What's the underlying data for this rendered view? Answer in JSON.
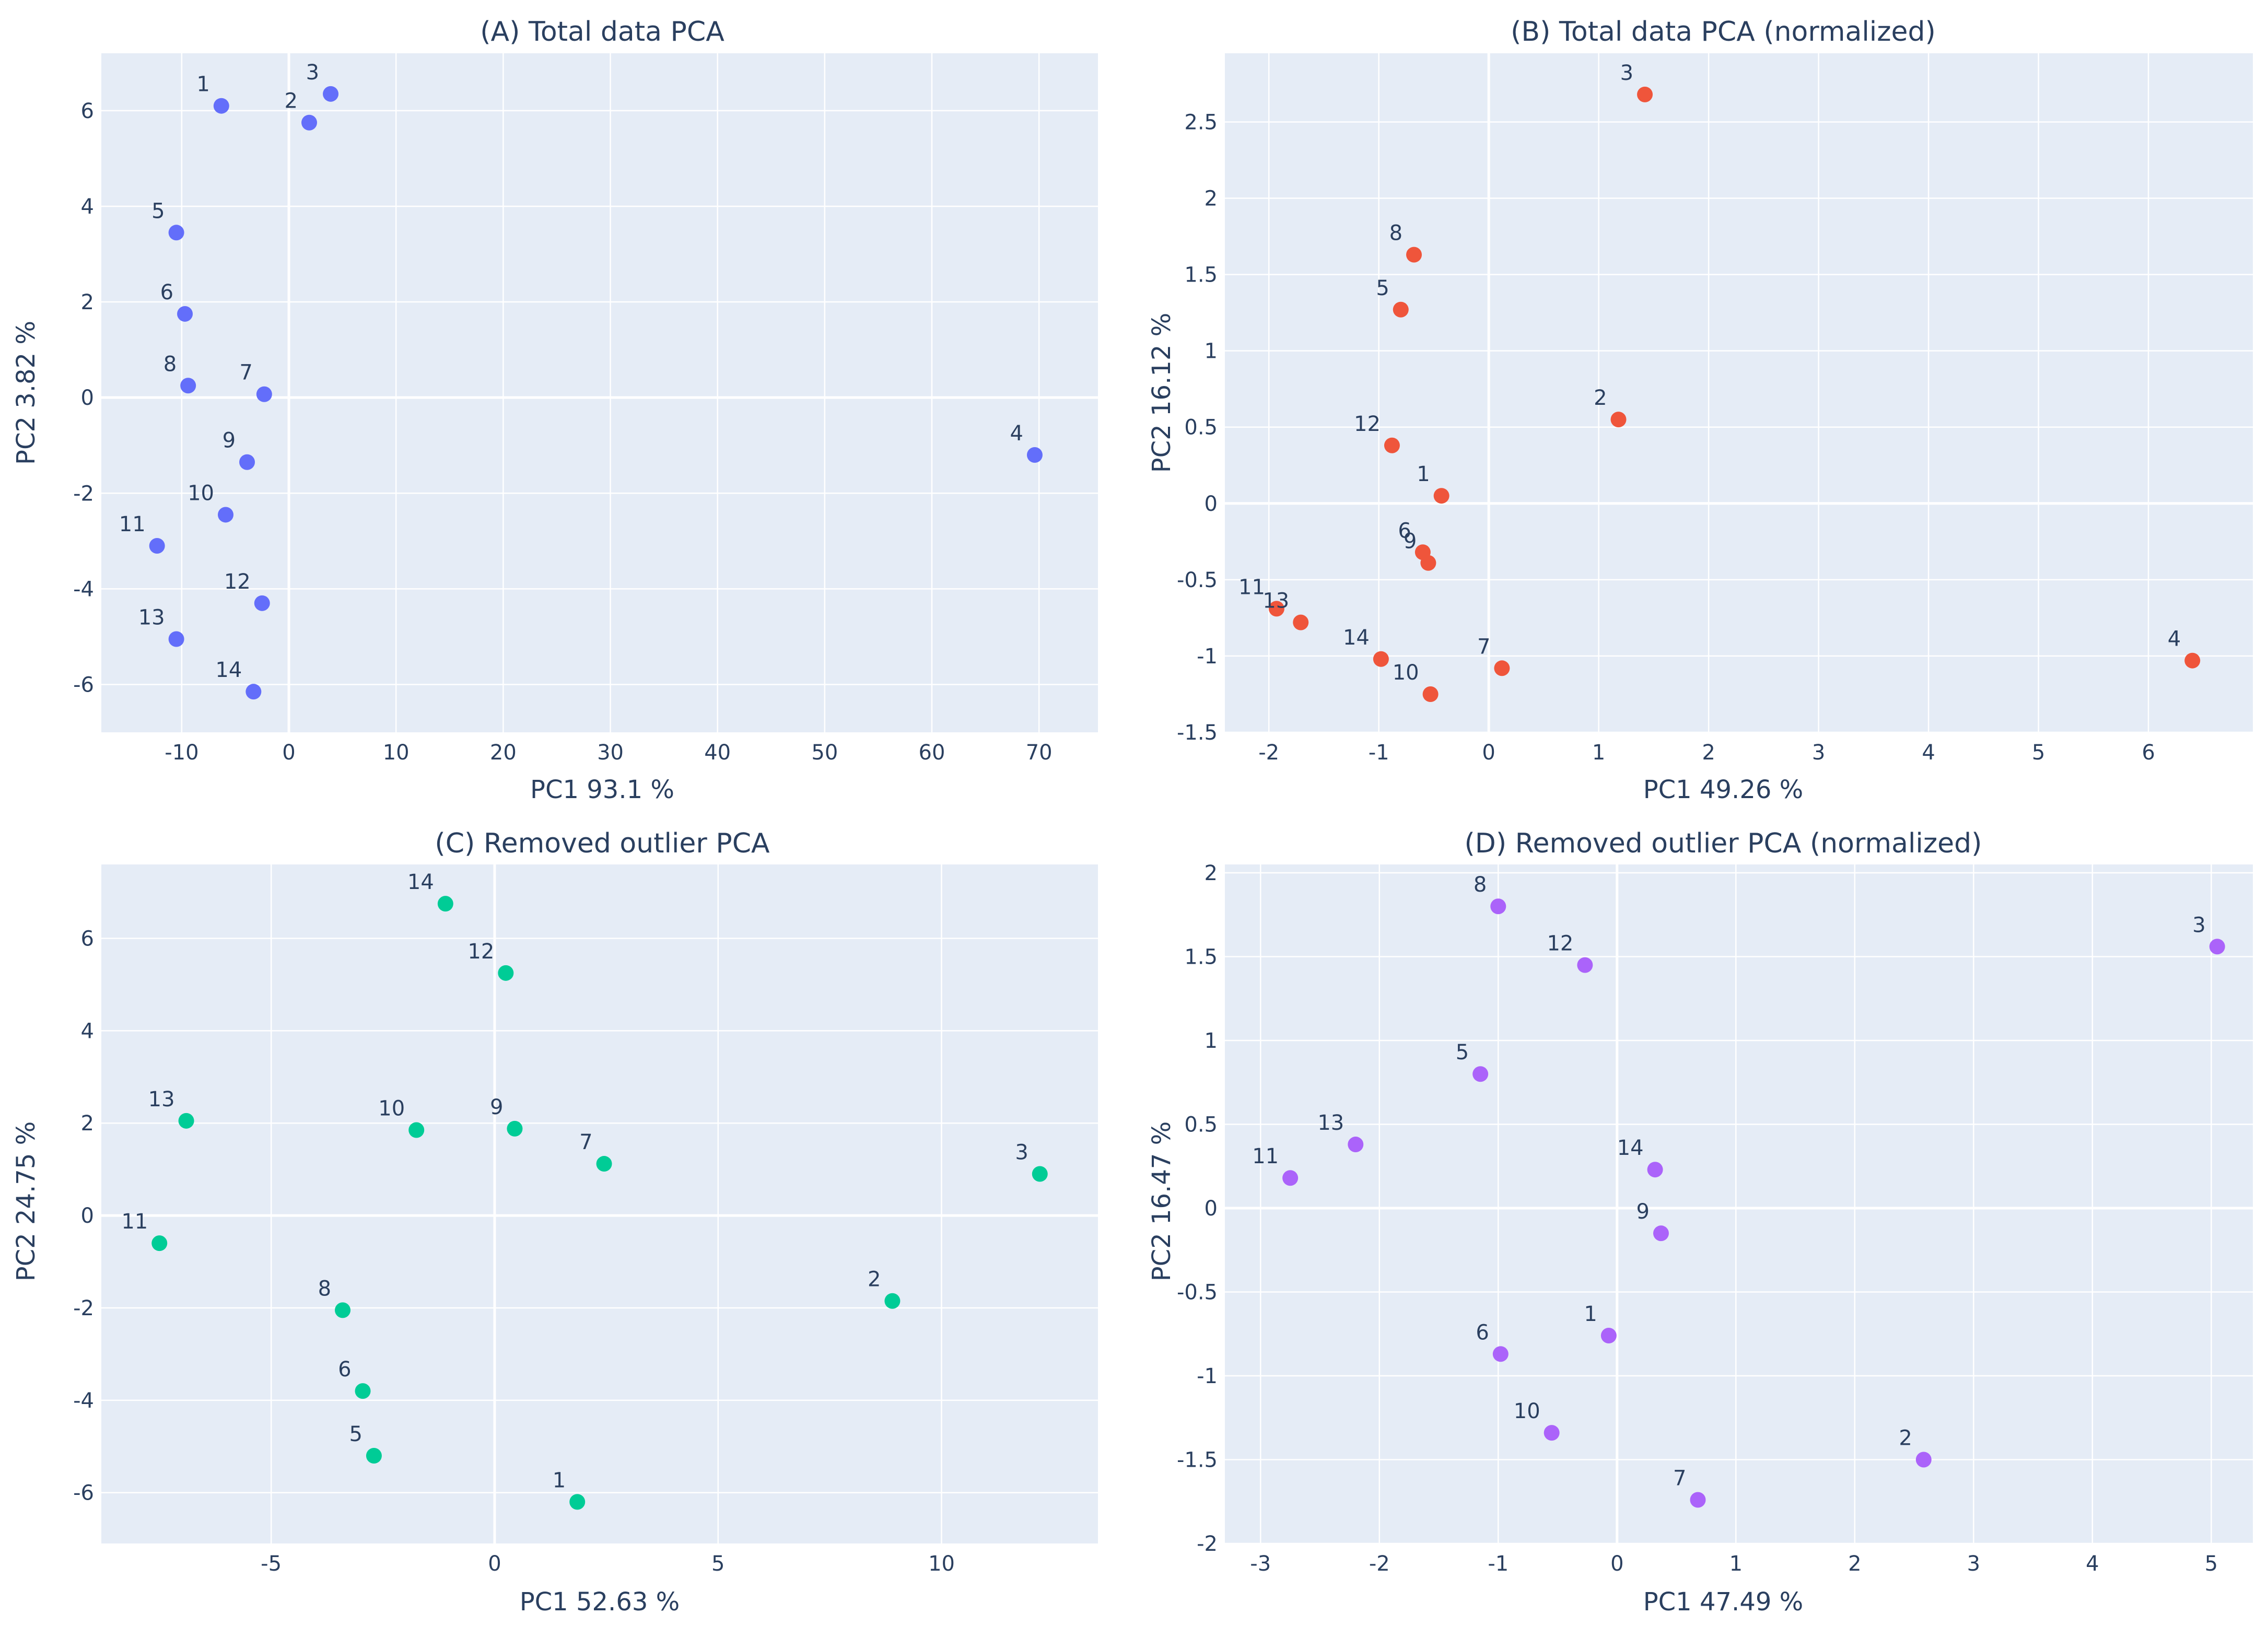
{
  "chart_data": [
    {
      "type": "scatter",
      "title": "(A) Total data PCA",
      "xlabel": "PC1 93.1 %",
      "ylabel": "PC2 3.82 %",
      "xlim": [
        -17.5,
        75.5
      ],
      "ylim": [
        -7.0,
        7.2
      ],
      "xticks": [
        -10,
        0,
        10,
        20,
        30,
        40,
        50,
        60,
        70
      ],
      "yticks": [
        -6,
        -4,
        -2,
        0,
        2,
        4,
        6
      ],
      "color": "#636efa",
      "points": [
        {
          "label": "1",
          "x": -6.3,
          "y": 6.1
        },
        {
          "label": "2",
          "x": 1.9,
          "y": 5.75
        },
        {
          "label": "3",
          "x": 3.9,
          "y": 6.35
        },
        {
          "label": "4",
          "x": 69.6,
          "y": -1.2
        },
        {
          "label": "5",
          "x": -10.5,
          "y": 3.45
        },
        {
          "label": "6",
          "x": -9.7,
          "y": 1.75
        },
        {
          "label": "7",
          "x": -2.3,
          "y": 0.07
        },
        {
          "label": "8",
          "x": -9.4,
          "y": 0.25
        },
        {
          "label": "9",
          "x": -3.9,
          "y": -1.35
        },
        {
          "label": "10",
          "x": -5.9,
          "y": -2.45
        },
        {
          "label": "11",
          "x": -12.3,
          "y": -3.1
        },
        {
          "label": "12",
          "x": -2.5,
          "y": -4.3
        },
        {
          "label": "13",
          "x": -10.5,
          "y": -5.05
        },
        {
          "label": "14",
          "x": -3.3,
          "y": -6.15
        }
      ]
    },
    {
      "type": "scatter",
      "title": "(B) Total data PCA (normalized)",
      "xlabel": "PC1 49.26 %",
      "ylabel": "PC2 16.12 %",
      "xlim": [
        -2.4,
        6.95
      ],
      "ylim": [
        -1.5,
        2.95
      ],
      "xticks": [
        -2,
        -1,
        0,
        1,
        2,
        3,
        4,
        5,
        6
      ],
      "yticks": [
        -1.5,
        -1,
        -0.5,
        0,
        0.5,
        1,
        1.5,
        2,
        2.5
      ],
      "color": "#ef553b",
      "points": [
        {
          "label": "1",
          "x": -0.43,
          "y": 0.05
        },
        {
          "label": "2",
          "x": 1.18,
          "y": 0.55
        },
        {
          "label": "3",
          "x": 1.42,
          "y": 2.68
        },
        {
          "label": "4",
          "x": 6.4,
          "y": -1.03
        },
        {
          "label": "5",
          "x": -0.8,
          "y": 1.27
        },
        {
          "label": "6",
          "x": -0.6,
          "y": -0.32
        },
        {
          "label": "7",
          "x": 0.12,
          "y": -1.08
        },
        {
          "label": "8",
          "x": -0.68,
          "y": 1.63
        },
        {
          "label": "9",
          "x": -0.55,
          "y": -0.39
        },
        {
          "label": "10",
          "x": -0.53,
          "y": -1.25
        },
        {
          "label": "11",
          "x": -1.93,
          "y": -0.69
        },
        {
          "label": "12",
          "x": -0.88,
          "y": 0.38
        },
        {
          "label": "13",
          "x": -1.71,
          "y": -0.78
        },
        {
          "label": "14",
          "x": -0.98,
          "y": -1.02
        }
      ]
    },
    {
      "type": "scatter",
      "title": "(C) Removed outlier PCA",
      "xlabel": "PC1 52.63 %",
      "ylabel": "PC2 24.75 %",
      "xlim": [
        -8.8,
        13.5
      ],
      "ylim": [
        -7.1,
        7.6
      ],
      "xticks": [
        -5,
        0,
        5,
        10
      ],
      "yticks": [
        -6,
        -4,
        -2,
        0,
        2,
        4,
        6
      ],
      "color": "#00cc96",
      "points": [
        {
          "label": "1",
          "x": 1.85,
          "y": -6.2
        },
        {
          "label": "2",
          "x": 8.9,
          "y": -1.85
        },
        {
          "label": "3",
          "x": 12.2,
          "y": 0.9
        },
        {
          "label": "5",
          "x": -2.7,
          "y": -5.2
        },
        {
          "label": "6",
          "x": -2.95,
          "y": -3.8
        },
        {
          "label": "7",
          "x": 2.45,
          "y": 1.12
        },
        {
          "label": "8",
          "x": -3.4,
          "y": -2.05
        },
        {
          "label": "9",
          "x": 0.45,
          "y": 1.88
        },
        {
          "label": "10",
          "x": -1.75,
          "y": 1.85
        },
        {
          "label": "11",
          "x": -7.5,
          "y": -0.6
        },
        {
          "label": "12",
          "x": 0.25,
          "y": 5.25
        },
        {
          "label": "13",
          "x": -6.9,
          "y": 2.05
        },
        {
          "label": "14",
          "x": -1.1,
          "y": 6.75
        }
      ]
    },
    {
      "type": "scatter",
      "title": "(D) Removed outlier PCA (normalized)",
      "xlabel": "PC1 47.49 %",
      "ylabel": "PC2 16.47 %",
      "xlim": [
        -3.3,
        5.35
      ],
      "ylim": [
        -2.0,
        2.05
      ],
      "xticks": [
        -3,
        -2,
        -1,
        0,
        1,
        2,
        3,
        4,
        5
      ],
      "yticks": [
        -2,
        -1.5,
        -1,
        -0.5,
        0,
        0.5,
        1,
        1.5,
        2
      ],
      "color": "#ab63fa",
      "points": [
        {
          "label": "1",
          "x": -0.07,
          "y": -0.76
        },
        {
          "label": "2",
          "x": 2.58,
          "y": -1.5
        },
        {
          "label": "3",
          "x": 5.05,
          "y": 1.56
        },
        {
          "label": "5",
          "x": -1.15,
          "y": 0.8
        },
        {
          "label": "6",
          "x": -0.98,
          "y": -0.87
        },
        {
          "label": "7",
          "x": 0.68,
          "y": -1.74
        },
        {
          "label": "8",
          "x": -1.0,
          "y": 1.8
        },
        {
          "label": "9",
          "x": 0.37,
          "y": -0.15
        },
        {
          "label": "10",
          "x": -0.55,
          "y": -1.34
        },
        {
          "label": "11",
          "x": -2.75,
          "y": 0.18
        },
        {
          "label": "12",
          "x": -0.27,
          "y": 1.45
        },
        {
          "label": "13",
          "x": -2.2,
          "y": 0.38
        },
        {
          "label": "14",
          "x": 0.32,
          "y": 0.23
        }
      ]
    }
  ]
}
